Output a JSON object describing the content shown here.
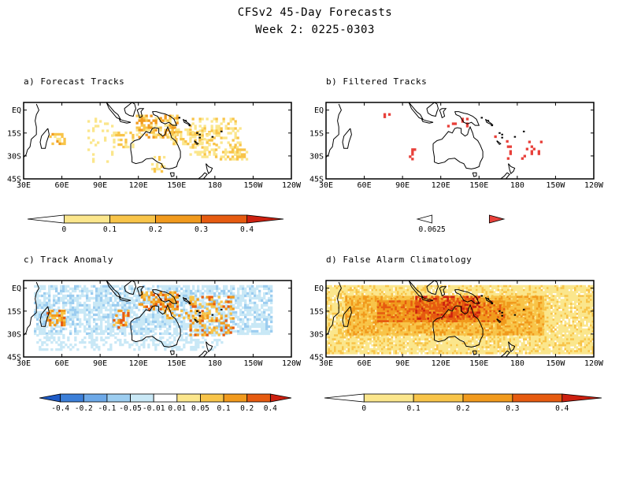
{
  "header": {
    "title": "CFSv2 45-Day Forecasts",
    "subtitle": "Week 2: 0225-0303"
  },
  "axes": {
    "lon_labels": [
      "30E",
      "60E",
      "90E",
      "120E",
      "150E",
      "180",
      "150W",
      "120W"
    ],
    "lat_labels": [
      "EQ",
      "15S",
      "30S",
      "45S"
    ]
  },
  "panels": [
    {
      "id": "a",
      "title": "a) Forecast Tracks",
      "colorbar": {
        "labels": [
          "0",
          "0.1",
          "0.2",
          "0.3",
          "0.4"
        ],
        "colors": [
          "#ffffff",
          "#fbe68c",
          "#f8c449",
          "#f19a1d",
          "#e65b10",
          "#cc2010"
        ]
      }
    },
    {
      "id": "b",
      "title": "b) Filtered Tracks",
      "colorbar": {
        "labels": [
          "0.0625"
        ],
        "colors": [
          "#ffffff",
          "#e8403a"
        ]
      }
    },
    {
      "id": "c",
      "title": "c) Track Anomaly",
      "colorbar": {
        "labels": [
          "-0.4",
          "-0.2",
          "-0.1",
          "-0.05",
          "-0.01",
          "0.01",
          "0.05",
          "0.1",
          "0.2",
          "0.4"
        ],
        "colors": [
          "#1e5bc6",
          "#3c7fd8",
          "#6da9e8",
          "#9ccdf0",
          "#c9e8f6",
          "#ffffff",
          "#fbe68c",
          "#f8c449",
          "#f19a1d",
          "#e65b10",
          "#cc2010"
        ]
      }
    },
    {
      "id": "d",
      "title": "d) False Alarm Climatology",
      "colorbar": {
        "labels": [
          "0",
          "0.1",
          "0.2",
          "0.3",
          "0.4"
        ],
        "colors": [
          "#ffffff",
          "#fbe68c",
          "#f8c449",
          "#f19a1d",
          "#e65b10",
          "#cc2010"
        ]
      }
    }
  ]
}
